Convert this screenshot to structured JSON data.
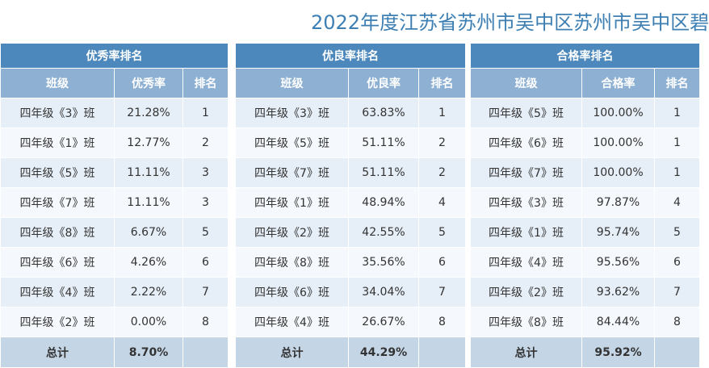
{
  "title": "2022年度江苏省苏州市吴中区苏州市吴中区碧",
  "tables": [
    {
      "caption": "优秀率排名",
      "columns": [
        "班级",
        "优秀率",
        "排名"
      ],
      "rows": [
        [
          "四年级《3》班",
          "21.28%",
          "1"
        ],
        [
          "四年级《1》班",
          "12.77%",
          "2"
        ],
        [
          "四年级《5》班",
          "11.11%",
          "3"
        ],
        [
          "四年级《7》班",
          "11.11%",
          "3"
        ],
        [
          "四年级《8》班",
          "6.67%",
          "5"
        ],
        [
          "四年级《6》班",
          "4.26%",
          "6"
        ],
        [
          "四年级《4》班",
          "2.22%",
          "7"
        ],
        [
          "四年级《2》班",
          "0.00%",
          "8"
        ]
      ],
      "total": [
        "总计",
        "8.70%"
      ]
    },
    {
      "caption": "优良率排名",
      "columns": [
        "班级",
        "优良率",
        "排名"
      ],
      "rows": [
        [
          "四年级《3》班",
          "63.83%",
          "1"
        ],
        [
          "四年级《5》班",
          "51.11%",
          "2"
        ],
        [
          "四年级《7》班",
          "51.11%",
          "2"
        ],
        [
          "四年级《1》班",
          "48.94%",
          "4"
        ],
        [
          "四年级《2》班",
          "42.55%",
          "5"
        ],
        [
          "四年级《8》班",
          "35.56%",
          "6"
        ],
        [
          "四年级《6》班",
          "34.04%",
          "7"
        ],
        [
          "四年级《4》班",
          "26.67%",
          "8"
        ]
      ],
      "total": [
        "总计",
        "44.29%"
      ]
    },
    {
      "caption": "合格率排名",
      "columns": [
        "班级",
        "合格率",
        "排名"
      ],
      "rows": [
        [
          "四年级《5》班",
          "100.00%",
          "1"
        ],
        [
          "四年级《6》班",
          "100.00%",
          "1"
        ],
        [
          "四年级《7》班",
          "100.00%",
          "1"
        ],
        [
          "四年级《3》班",
          "97.87%",
          "4"
        ],
        [
          "四年级《1》班",
          "95.74%",
          "5"
        ],
        [
          "四年级《4》班",
          "95.56%",
          "6"
        ],
        [
          "四年级《2》班",
          "93.62%",
          "7"
        ],
        [
          "四年级《8》班",
          "84.44%",
          "8"
        ]
      ],
      "total": [
        "总计",
        "95.92%"
      ]
    }
  ]
}
